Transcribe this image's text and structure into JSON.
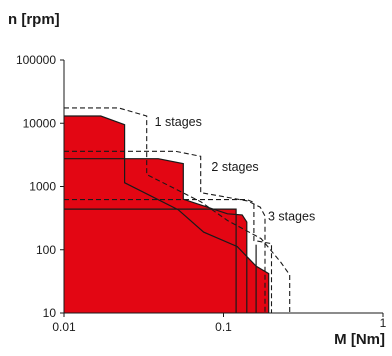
{
  "chart_data": {
    "type": "area",
    "ylabel": "n [rpm]",
    "xlabel": "M [Nm]",
    "xscale": "log",
    "yscale": "log",
    "xlim": [
      0.01,
      1
    ],
    "ylim": [
      10,
      100000
    ],
    "x_ticks": [
      {
        "value": 0.01,
        "label": "0.01"
      },
      {
        "value": 0.1,
        "label": "0.1"
      },
      {
        "value": 1,
        "label": "1"
      }
    ],
    "y_ticks": [
      {
        "value": 10,
        "label": "10"
      },
      {
        "value": 100,
        "label": "100"
      },
      {
        "value": 1000,
        "label": "1000"
      },
      {
        "value": 10000,
        "label": "10000"
      },
      {
        "value": 100000,
        "label": "100000"
      }
    ],
    "fill_color": "#e30613",
    "series": [
      {
        "style": "filled",
        "points": [
          [
            0.01,
            13000
          ],
          [
            0.017,
            13000
          ],
          [
            0.024,
            9500
          ],
          [
            0.024,
            1150
          ],
          [
            0.052,
            430
          ],
          [
            0.075,
            190
          ],
          [
            0.122,
            112
          ],
          [
            0.16,
            55
          ],
          [
            0.192,
            42
          ],
          [
            0.192,
            10
          ]
        ]
      },
      {
        "style": "filled",
        "points": [
          [
            0.01,
            2750
          ],
          [
            0.039,
            2750
          ],
          [
            0.056,
            2300
          ],
          [
            0.056,
            630
          ],
          [
            0.106,
            370
          ],
          [
            0.131,
            355
          ],
          [
            0.14,
            275
          ],
          [
            0.14,
            10
          ]
        ]
      },
      {
        "style": "filled",
        "points": [
          [
            0.01,
            440
          ],
          [
            0.075,
            440
          ],
          [
            0.12,
            440
          ],
          [
            0.12,
            10
          ]
        ]
      },
      {
        "style": "filled",
        "points": [
          [
            0.16,
            120
          ],
          [
            0.16,
            10
          ]
        ]
      },
      {
        "style": "dashed",
        "points": [
          [
            0.01,
            17500
          ],
          [
            0.022,
            17500
          ],
          [
            0.033,
            13000
          ],
          [
            0.033,
            1550
          ],
          [
            0.072,
            575
          ],
          [
            0.106,
            290
          ],
          [
            0.172,
            150
          ],
          [
            0.228,
            64
          ],
          [
            0.26,
            40
          ],
          [
            0.26,
            10
          ]
        ]
      },
      {
        "style": "dashed",
        "points": [
          [
            0.01,
            3600
          ],
          [
            0.05,
            3600
          ],
          [
            0.072,
            3000
          ],
          [
            0.072,
            800
          ],
          [
            0.142,
            590
          ],
          [
            0.17,
            470
          ],
          [
            0.182,
            340
          ],
          [
            0.182,
            10
          ]
        ]
      },
      {
        "style": "dashed",
        "points": [
          [
            0.01,
            620
          ],
          [
            0.1,
            620
          ],
          [
            0.14,
            620
          ],
          [
            0.155,
            560
          ],
          [
            0.155,
            140
          ],
          [
            0.2,
            125
          ],
          [
            0.2,
            10
          ]
        ]
      }
    ],
    "annotations": [
      {
        "text": "1 stages",
        "x": 0.037,
        "y": 9000
      },
      {
        "text": "2 stages",
        "x": 0.084,
        "y": 1750
      },
      {
        "text": "3 stages",
        "x": 0.19,
        "y": 290
      }
    ]
  }
}
